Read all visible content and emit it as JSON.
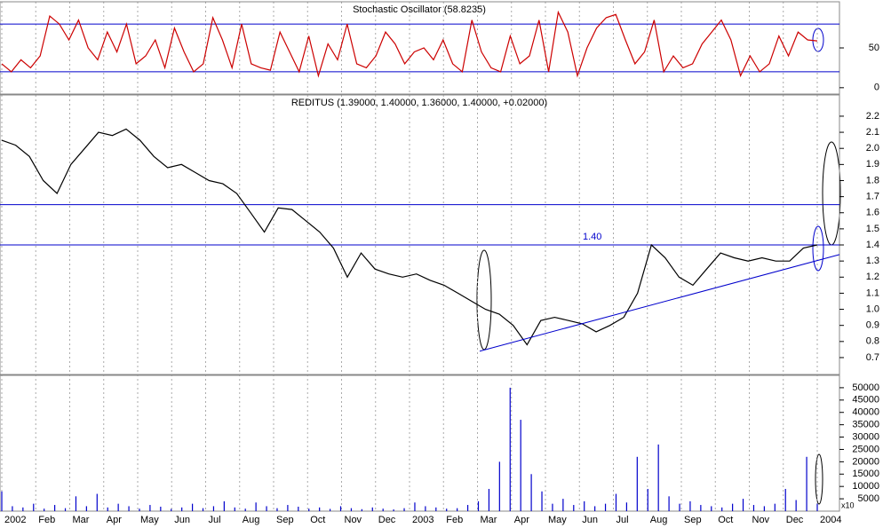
{
  "x_axis": {
    "labels": [
      "2002",
      "Feb",
      "Mar",
      "Apr",
      "May",
      "Jun",
      "Jul",
      "Aug",
      "Sep",
      "Oct",
      "Nov",
      "Dec",
      "2003",
      "Feb",
      "Mar",
      "Apr",
      "May",
      "Jun",
      "Jul",
      "Aug",
      "Sep",
      "Oct",
      "Nov",
      "Dec",
      "2004"
    ]
  },
  "chart_data": [
    {
      "type": "line",
      "title": "Stochastic Oscillator (58.8235)",
      "color": "#cc0000",
      "ylim": [
        -8,
        108
      ],
      "yticks": [
        0,
        50
      ],
      "hlines": [
        20,
        80
      ],
      "hline_color": "#0000cc",
      "values": [
        30,
        20,
        35,
        25,
        40,
        90,
        80,
        60,
        85,
        50,
        35,
        70,
        45,
        80,
        30,
        40,
        60,
        25,
        75,
        45,
        20,
        30,
        88,
        60,
        25,
        80,
        30,
        25,
        22,
        70,
        45,
        20,
        65,
        15,
        55,
        35,
        80,
        30,
        25,
        40,
        70,
        55,
        30,
        45,
        50,
        35,
        60,
        30,
        20,
        85,
        45,
        25,
        20,
        65,
        30,
        40,
        85,
        20,
        95,
        70,
        15,
        50,
        75,
        88,
        92,
        60,
        30,
        45,
        85,
        20,
        40,
        25,
        30,
        55,
        70,
        85,
        60,
        15,
        40,
        20,
        30,
        65,
        40,
        70,
        60,
        58.8
      ]
    },
    {
      "type": "line",
      "title": "REDITUS (1.39000, 1.40000, 1.36000, 1.40000, +0.02000)",
      "color": "#000000",
      "ylim": [
        0.595,
        2.332
      ],
      "yticks": [
        0.7,
        0.8,
        0.9,
        {
          "value": 1,
          "label": "1.0"
        },
        1.1,
        1.2,
        1.3,
        1.4,
        1.5,
        1.6,
        1.7,
        1.8,
        1.9,
        {
          "value": 2,
          "label": "2.0"
        },
        2.1,
        2.2
      ],
      "hlines": [
        1.65,
        1.4
      ],
      "hline_color": "#0000cc",
      "annotation": "1.40",
      "trendline": [
        0.74,
        1.34
      ],
      "values": [
        2.05,
        2.02,
        1.95,
        1.8,
        1.72,
        1.9,
        2.0,
        2.1,
        2.08,
        2.12,
        2.05,
        1.95,
        1.88,
        1.9,
        1.85,
        1.8,
        1.78,
        1.72,
        1.6,
        1.48,
        1.63,
        1.62,
        1.55,
        1.48,
        1.38,
        1.2,
        1.35,
        1.25,
        1.22,
        1.2,
        1.22,
        1.18,
        1.15,
        1.1,
        1.05,
        1.0,
        0.97,
        0.9,
        0.78,
        0.93,
        0.95,
        0.93,
        0.91,
        0.86,
        0.9,
        0.95,
        1.1,
        1.4,
        1.32,
        1.2,
        1.15,
        1.25,
        1.35,
        1.32,
        1.3,
        1.32,
        1.3,
        1.3,
        1.38,
        1.4
      ]
    },
    {
      "type": "bar",
      "color": "#0000cc",
      "unit_label": "x10",
      "ylim": [
        0,
        55000
      ],
      "yticks": [
        5000,
        10000,
        15000,
        20000,
        25000,
        30000,
        35000,
        40000,
        45000,
        50000
      ],
      "values": [
        8000,
        2000,
        1500,
        3000,
        1000,
        2500,
        1200,
        6000,
        2000,
        7000,
        1500,
        3000,
        2000,
        1000,
        2500,
        1800,
        900,
        1500,
        3000,
        1200,
        2000,
        4000,
        1500,
        1000,
        3500,
        2000,
        1200,
        2500,
        1800,
        1000,
        1500,
        900,
        2000,
        1200,
        800,
        1500,
        1000,
        700,
        1200,
        3500,
        2000,
        1500,
        1000,
        1200,
        2500,
        4000,
        9000,
        20000,
        50000,
        37000,
        15000,
        8000,
        3000,
        5000,
        2500,
        4000,
        2000,
        3000,
        7000,
        3500,
        22000,
        9000,
        27000,
        6000,
        3000,
        4000,
        2500,
        2000,
        1500,
        3000,
        5000,
        2500,
        2000,
        3000,
        9000,
        4500,
        22000,
        3000
      ]
    }
  ]
}
